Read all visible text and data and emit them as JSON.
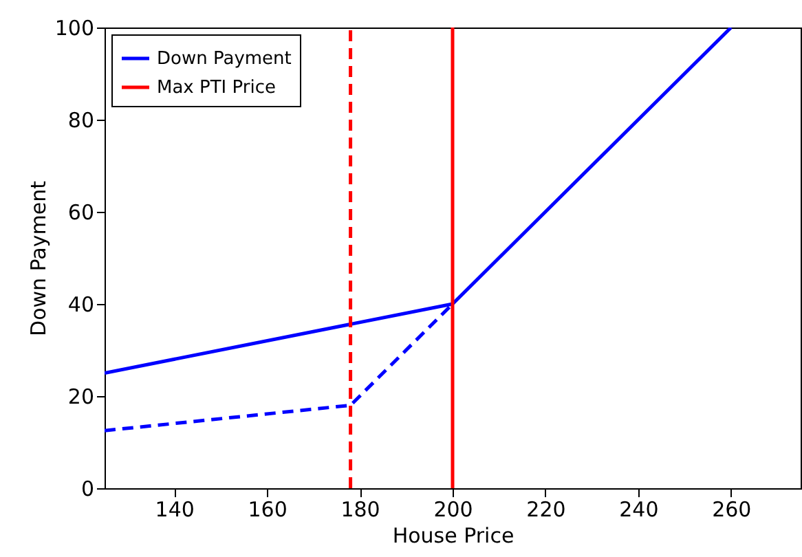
{
  "chart_data": {
    "type": "line",
    "xlabel": "House Price",
    "ylabel": "Down Payment",
    "xlim": [
      125,
      275
    ],
    "xticks": [
      140,
      160,
      180,
      200,
      220,
      240,
      260
    ],
    "ylim": [
      0,
      100
    ],
    "yticks": [
      0,
      20,
      40,
      60,
      80,
      100
    ],
    "grid": false,
    "legend": "top left",
    "marker": "none",
    "series": [
      {
        "name": "Down Payment",
        "color": "#0000ff",
        "line_style": "solid",
        "x": [
          125,
          200,
          260
        ],
        "values": [
          25,
          40,
          100
        ]
      },
      {
        "color": "#0000ff",
        "line_style": "dashed",
        "x": [
          125,
          178,
          200
        ],
        "values": [
          12.5,
          18,
          40
        ]
      },
      {
        "name": "Max PTI Price",
        "color": "#ff0000",
        "line_style": "solid",
        "x": [
          200,
          200
        ],
        "values": [
          0,
          100
        ]
      },
      {
        "color": "#ff0000",
        "line_style": "dashed",
        "x": [
          178,
          178
        ],
        "values": [
          0,
          100
        ]
      }
    ]
  }
}
